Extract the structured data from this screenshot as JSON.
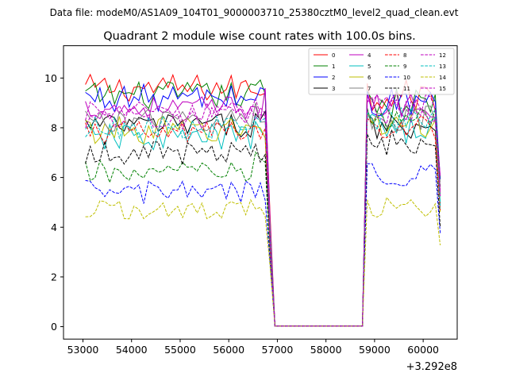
{
  "chart_data": {
    "type": "line",
    "suptitle": "Data file: modeM0/AS1A09_104T01_9000003710_25380cztM0_level2_quad_clean.evt",
    "title": "Quadrant 2 module wise count rates with 100.0s bins.",
    "xlabel": "",
    "ylabel": "",
    "x_offset_label": "+3.292e8",
    "xlim": [
      52600,
      60700
    ],
    "ylim": [
      -0.5,
      11.3
    ],
    "xticks": [
      53000,
      54000,
      55000,
      56000,
      57000,
      58000,
      59000,
      60000
    ],
    "xtick_labels": [
      "53000",
      "54000",
      "55000",
      "56000",
      "57000",
      "58000",
      "59000",
      "60000"
    ],
    "yticks": [
      0,
      2,
      4,
      6,
      8,
      10
    ],
    "ytick_labels": [
      "0",
      "2",
      "4",
      "6",
      "8",
      "10"
    ],
    "grid": false,
    "legend_position": "top-right",
    "legend_columns": 4,
    "bin_width": 100,
    "segments": [
      {
        "x_start": 53050,
        "count": 38
      },
      {
        "x_start": 56850,
        "count": 1
      },
      {
        "x_start": 56950,
        "count": 18
      },
      {
        "x_start": 58750,
        "count": 1
      },
      {
        "x_start": 58850,
        "count": 16
      }
    ],
    "series": [
      {
        "name": "0",
        "color": "#ff0000",
        "dash": "solid",
        "mean1": 9.6,
        "mean2": 9.3,
        "amp": 0.35
      },
      {
        "name": "1",
        "color": "#008000",
        "dash": "solid",
        "mean1": 9.3,
        "mean2": 9.0,
        "amp": 0.35
      },
      {
        "name": "2",
        "color": "#0000ff",
        "dash": "solid",
        "mean1": 9.2,
        "mean2": 9.0,
        "amp": 0.35
      },
      {
        "name": "3",
        "color": "#000000",
        "dash": "solid",
        "mean1": 8.1,
        "mean2": 8.1,
        "amp": 0.3
      },
      {
        "name": "4",
        "color": "#bf00bf",
        "dash": "solid",
        "mean1": 8.8,
        "mean2": 8.9,
        "amp": 0.3
      },
      {
        "name": "5",
        "color": "#00bfbf",
        "dash": "solid",
        "mean1": 7.6,
        "mean2": 8.0,
        "amp": 0.35
      },
      {
        "name": "6",
        "color": "#bfbf00",
        "dash": "solid",
        "mean1": 7.9,
        "mean2": 8.2,
        "amp": 0.35
      },
      {
        "name": "7",
        "color": "#808080",
        "dash": "solid",
        "mean1": 8.3,
        "mean2": 8.4,
        "amp": 0.3
      },
      {
        "name": "8",
        "color": "#ff0000",
        "dash": "dashed",
        "mean1": 7.8,
        "mean2": 8.0,
        "amp": 0.3
      },
      {
        "name": "9",
        "color": "#008000",
        "dash": "dashed",
        "mean1": 6.2,
        "mean2": 8.4,
        "amp": 0.3
      },
      {
        "name": "10",
        "color": "#0000ff",
        "dash": "dashed",
        "mean1": 5.4,
        "mean2": 6.2,
        "amp": 0.3
      },
      {
        "name": "11",
        "color": "#000000",
        "dash": "dashed",
        "mean1": 7.0,
        "mean2": 7.4,
        "amp": 0.3
      },
      {
        "name": "12",
        "color": "#bf00bf",
        "dash": "dashed",
        "mean1": 8.4,
        "mean2": 8.7,
        "amp": 0.3
      },
      {
        "name": "13",
        "color": "#00bfbf",
        "dash": "dashed",
        "mean1": 8.0,
        "mean2": 8.3,
        "amp": 0.3
      },
      {
        "name": "14",
        "color": "#bfbf00",
        "dash": "dashed",
        "mean1": 4.7,
        "mean2": 4.8,
        "amp": 0.25
      },
      {
        "name": "15",
        "color": "#bf00bf",
        "dash": "dashed",
        "mean1": 8.6,
        "mean2": 8.8,
        "amp": 0.3
      }
    ],
    "approx_values": {
      "note_x": "bins every 100 s from 53050 to 60350; near-zero 56950-58750",
      "during_gap": 0.02
    }
  }
}
